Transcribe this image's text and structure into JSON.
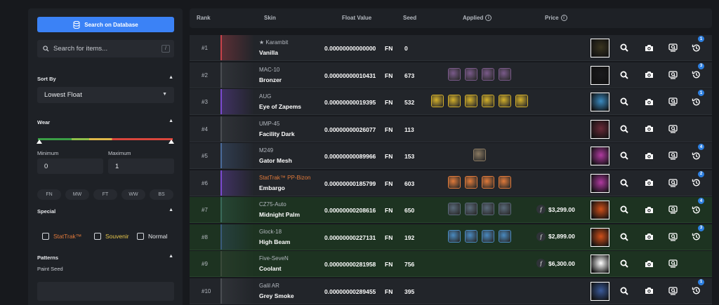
{
  "sidebar": {
    "search_db_label": "Search on Database",
    "search_placeholder": "Search for items...",
    "search_shortcut": "/",
    "sort_title": "Sort By",
    "sort_value": "Lowest Float",
    "wear_title": "Wear",
    "min_label": "Minimum",
    "max_label": "Maximum",
    "min_value": "0",
    "max_value": "1",
    "wear_buttons": [
      "FN",
      "MW",
      "FT",
      "WW",
      "BS"
    ],
    "special_title": "Special",
    "special_options": [
      "StatTrak™",
      "Souvenir",
      "Normal"
    ],
    "patterns_title": "Patterns",
    "paint_seed_label": "Paint Seed"
  },
  "table": {
    "headers": {
      "rank": "Rank",
      "skin": "Skin",
      "float": "Float Value",
      "seed": "Seed",
      "applied": "Applied",
      "price": "Price"
    },
    "rows": [
      {
        "rank": "#1",
        "weapon": "★ Karambit",
        "skin": "Vanilla",
        "float": "0.00000000000000",
        "wear": "FN",
        "seed": "0",
        "stickers": 0,
        "price": "",
        "rarity_color": "#c8424a",
        "thumb_color": "#3a3520",
        "badge": "1",
        "stattrak": false,
        "shots": 1
      },
      {
        "rank": "#2",
        "weapon": "MAC-10",
        "skin": "Bronzer",
        "float": "0.00000000010431",
        "wear": "FN",
        "seed": "673",
        "stickers": 4,
        "sticker_color": "#7a5a8a",
        "price": "",
        "rarity_color": "#4a4d52",
        "thumb_color": "#1a1a1c",
        "badge": "3",
        "stattrak": false,
        "shots": 1
      },
      {
        "rank": "#3",
        "weapon": "AUG",
        "skin": "Eye of Zapems",
        "float": "0.00000000019395",
        "wear": "FN",
        "seed": "532",
        "stickers": 6,
        "sticker_color": "#d4b02a",
        "price": "",
        "rarity_color": "#7b4ad0",
        "thumb_color": "#3a8ac0",
        "badge": "1",
        "stattrak": false,
        "shots": 1
      },
      {
        "rank": "#4",
        "weapon": "UMP-45",
        "skin": "Facility Dark",
        "float": "0.00000000026077",
        "wear": "FN",
        "seed": "113",
        "stickers": 0,
        "price": "",
        "rarity_color": "#4a4d52",
        "thumb_color": "#6a2a38",
        "badge": "",
        "stattrak": false,
        "shots": 0
      },
      {
        "rank": "#5",
        "weapon": "M249",
        "skin": "Gator Mesh",
        "float": "0.00000000089966",
        "wear": "FN",
        "seed": "153",
        "stickers": 1,
        "sticker_color": "#8a7a62",
        "price": "",
        "rarity_color": "#4a6a9a",
        "thumb_color": "#b03aa0",
        "badge": "4",
        "stattrak": false,
        "shots": 1
      },
      {
        "rank": "#6",
        "weapon": "StatTrak™ PP-Bizon",
        "skin": "Embargo",
        "float": "0.00000000185799",
        "wear": "FN",
        "seed": "603",
        "stickers": 4,
        "sticker_color": "#e07a3a",
        "price": "",
        "rarity_color": "#7b4ad0",
        "thumb_color": "#b03aa0",
        "badge": "2",
        "stattrak": true,
        "shots": 1
      },
      {
        "rank": "#7",
        "weapon": "CZ75-Auto",
        "skin": "Midnight Palm",
        "float": "0.00000000208616",
        "wear": "FN",
        "seed": "650",
        "stickers": 4,
        "sticker_color": "#5a6a7a",
        "price": "$3,299.00",
        "rarity_color": "#3a6a5a",
        "thumb_color": "#d0501a",
        "badge": "4",
        "stattrak": false,
        "shots": 1
      },
      {
        "rank": "#8",
        "weapon": "Glock-18",
        "skin": "High Beam",
        "float": "0.00000000227131",
        "wear": "FN",
        "seed": "192",
        "stickers": 4,
        "sticker_color": "#4a8ac0",
        "price": "$2,899.00",
        "rarity_color": "#3a5a7a",
        "thumb_color": "#d0501a",
        "badge": "3",
        "stattrak": false,
        "shots": 1
      },
      {
        "rank": "#9",
        "weapon": "Five-SeveN",
        "skin": "Coolant",
        "float": "0.00000000281958",
        "wear": "FN",
        "seed": "756",
        "stickers": 0,
        "price": "$6,300.00",
        "rarity_color": "#3a4a3a",
        "thumb_color": "#ffffff",
        "badge": "",
        "stattrak": false,
        "shots": 0
      },
      {
        "rank": "#10",
        "weapon": "Galil AR",
        "skin": "Grey Smoke",
        "float": "0.00000000289455",
        "wear": "FN",
        "seed": "395",
        "stickers": 0,
        "price": "",
        "rarity_color": "#4a4d52",
        "thumb_color": "#3a5a9a",
        "badge": "1",
        "stattrak": false,
        "shots": 1
      }
    ]
  }
}
